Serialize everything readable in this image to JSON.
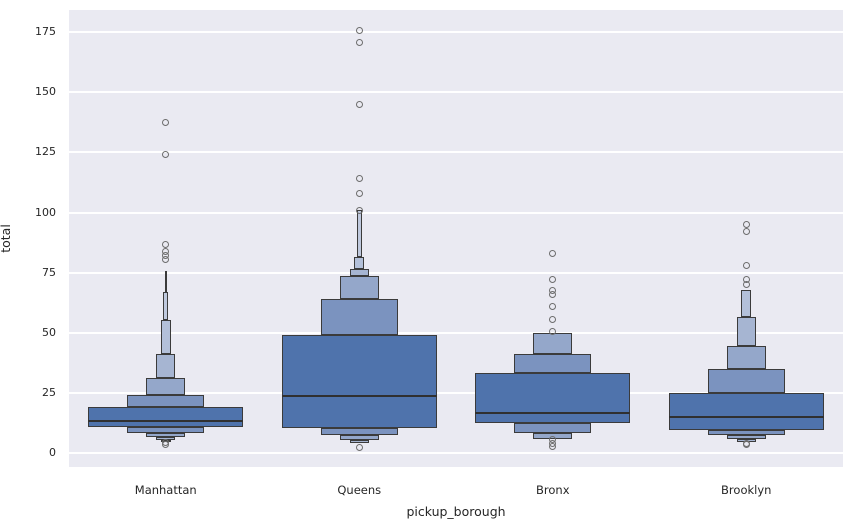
{
  "style": {
    "background": "#ffffff",
    "axes_background": "#eaeaf2",
    "grid_color": "#ffffff",
    "edge_color": "#3b3b3b",
    "median_color": "#303030",
    "flier_color": "#6d6d6d",
    "text_color": "#262626",
    "level_palette": [
      "#4f73ac",
      "#7b93bf",
      "#94a7ca",
      "#a6b5d2",
      "#b3c0d9",
      "#bfc9de",
      "#c6cfe2"
    ]
  },
  "chart_data": {
    "type": "boxen",
    "title": "",
    "xlabel": "pickup_borough",
    "ylabel": "total",
    "categories": [
      "Manhattan",
      "Queens",
      "Bronx",
      "Brooklyn"
    ],
    "yticks": [
      0,
      25,
      50,
      75,
      100,
      125,
      150,
      175
    ],
    "ylim": [
      -5.8,
      184.2
    ],
    "grid": true,
    "legend": false,
    "box_width_fraction": 0.8,
    "level_width_decay": 0.5,
    "groups": [
      {
        "name": "Manhattan",
        "median": 13.4,
        "boxes": [
          {
            "lo": 10.7,
            "hi": 19.0,
            "level": 0
          },
          {
            "lo": 8.2,
            "hi": 10.7,
            "level": 1
          },
          {
            "lo": 19.0,
            "hi": 24.1,
            "level": 1
          },
          {
            "lo": 6.5,
            "hi": 8.2,
            "level": 2
          },
          {
            "lo": 24.1,
            "hi": 31.0,
            "level": 2
          },
          {
            "lo": 5.4,
            "hi": 6.5,
            "level": 3
          },
          {
            "lo": 31.0,
            "hi": 41.0,
            "level": 3
          },
          {
            "lo": 4.9,
            "hi": 5.4,
            "level": 4
          },
          {
            "lo": 41.0,
            "hi": 55.3,
            "level": 4
          },
          {
            "lo": 55.3,
            "hi": 67.0,
            "level": 5
          },
          {
            "lo": 67.0,
            "hi": 75.7,
            "level": 6
          }
        ],
        "outliers_high": [
          80.5,
          82.0,
          84.0,
          86.5,
          124.3,
          137.3
        ],
        "outliers_low": [
          4.3,
          3.6
        ]
      },
      {
        "name": "Queens",
        "median": 23.7,
        "boxes": [
          {
            "lo": 10.5,
            "hi": 49.2,
            "level": 0
          },
          {
            "lo": 7.5,
            "hi": 10.5,
            "level": 1
          },
          {
            "lo": 49.2,
            "hi": 63.9,
            "level": 1
          },
          {
            "lo": 5.5,
            "hi": 7.5,
            "level": 2
          },
          {
            "lo": 63.9,
            "hi": 73.6,
            "level": 2
          },
          {
            "lo": 4.2,
            "hi": 5.5,
            "level": 3
          },
          {
            "lo": 73.6,
            "hi": 76.4,
            "level": 3
          },
          {
            "lo": 76.4,
            "hi": 81.6,
            "level": 4
          },
          {
            "lo": 81.6,
            "hi": 101.0,
            "level": 5
          }
        ],
        "outliers_high": [
          101.0,
          108.0,
          114.3,
          145.0,
          170.8,
          175.8
        ],
        "outliers_low": [
          2.3
        ]
      },
      {
        "name": "Bronx",
        "median": 16.8,
        "boxes": [
          {
            "lo": 12.3,
            "hi": 33.1,
            "level": 0
          },
          {
            "lo": 8.4,
            "hi": 12.3,
            "level": 1
          },
          {
            "lo": 33.1,
            "hi": 41.2,
            "level": 1
          },
          {
            "lo": 5.7,
            "hi": 8.4,
            "level": 2
          },
          {
            "lo": 41.2,
            "hi": 50.0,
            "level": 2
          }
        ],
        "outliers_high": [
          50.5,
          55.5,
          61.0,
          66.0,
          67.5,
          72.0,
          83.0
        ],
        "outliers_low": [
          5.5,
          4.0,
          2.8
        ]
      },
      {
        "name": "Brooklyn",
        "median": 14.8,
        "boxes": [
          {
            "lo": 9.6,
            "hi": 24.8,
            "level": 0
          },
          {
            "lo": 7.5,
            "hi": 9.6,
            "level": 1
          },
          {
            "lo": 24.8,
            "hi": 34.8,
            "level": 1
          },
          {
            "lo": 5.7,
            "hi": 7.5,
            "level": 2
          },
          {
            "lo": 34.8,
            "hi": 44.5,
            "level": 2
          },
          {
            "lo": 4.5,
            "hi": 5.7,
            "level": 3
          },
          {
            "lo": 44.5,
            "hi": 56.7,
            "level": 3
          },
          {
            "lo": 56.7,
            "hi": 67.7,
            "level": 4
          }
        ],
        "outliers_high": [
          70.1,
          72.3,
          78.0,
          92.0,
          95.2
        ],
        "outliers_low": [
          4.0,
          3.4
        ]
      }
    ]
  }
}
